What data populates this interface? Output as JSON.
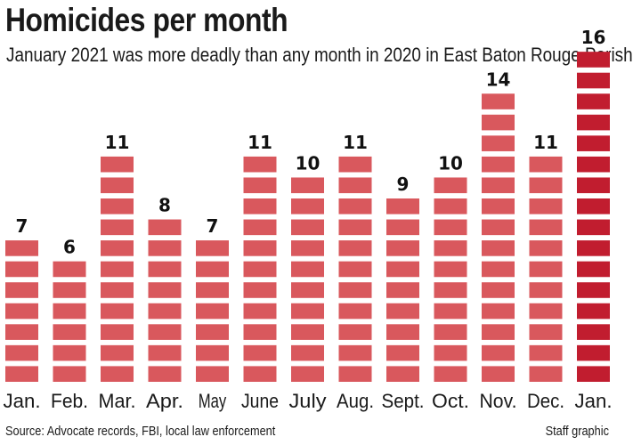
{
  "chart_data": {
    "type": "bar",
    "title": "Homicides per month",
    "subtitle": "January 2021 was more deadly than any month in 2020 in East Baton Rouge Parish",
    "categories": [
      "Jan.",
      "Feb.",
      "Mar.",
      "Apr.",
      "May",
      "June",
      "July",
      "Aug.",
      "Sept.",
      "Oct.",
      "Nov.",
      "Dec.",
      "Jan."
    ],
    "values": [
      7,
      6,
      11,
      8,
      7,
      11,
      10,
      11,
      9,
      10,
      14,
      11,
      16
    ],
    "highlight_index": 12,
    "xlabel": "",
    "ylabel": "",
    "ylim": [
      0,
      16
    ],
    "grid": false,
    "colors": {
      "default": "#d9585d",
      "highlight": "#c11d2f"
    },
    "source": "Source: Advocate records, FBI, local law enforcement",
    "credit": "Staff graphic"
  }
}
